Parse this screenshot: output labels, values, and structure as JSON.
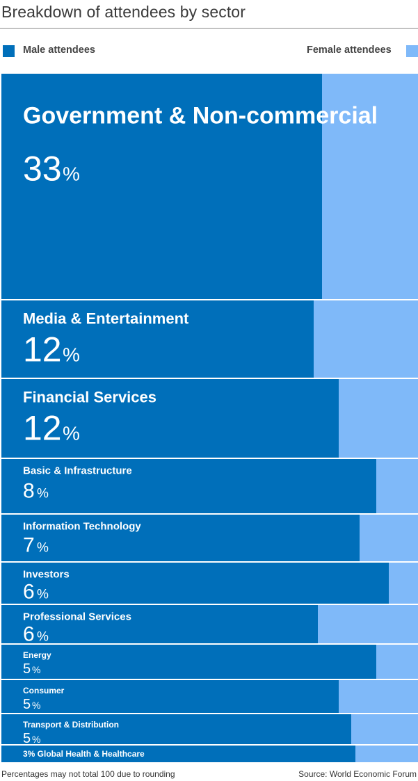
{
  "title": "Breakdown of attendees by sector",
  "legend": {
    "male": "Male attendees",
    "female": "Female attendees"
  },
  "colors": {
    "male": "#006fba",
    "female": "#7fb9f9",
    "separator": "#ffffff"
  },
  "footer": {
    "note": "Percentages may not total 100 due to rounding",
    "source": "Source: World Economic Forum"
  },
  "chart_data": {
    "type": "bar",
    "subtype": "variable-width stacked bar (100%)",
    "title": "Breakdown of attendees by sector",
    "series": [
      {
        "name": "Male attendees",
        "values": [
          77,
          75,
          81,
          90,
          86,
          93,
          76,
          90,
          81,
          84,
          85
        ]
      },
      {
        "name": "Female attendees",
        "values": [
          23,
          25,
          19,
          10,
          14,
          7,
          24,
          10,
          19,
          16,
          15
        ]
      }
    ],
    "categories": [
      "Government & Non-commercial",
      "Media & Entertainment",
      "Financial Services",
      "Basic & Infrastructure",
      "Information Technology",
      "Investors",
      "Professional Services",
      "Energy",
      "Consumer",
      "Transport & Distribution",
      "Global Health & Healthcare"
    ],
    "shares": [
      33,
      12,
      12,
      8,
      7,
      6,
      6,
      5,
      5,
      5,
      3
    ],
    "share_labels": [
      "33",
      "12",
      "12",
      "8",
      "7",
      "6",
      "6",
      "5",
      "5",
      "5",
      "3"
    ],
    "percent_sign": "%",
    "inline_label": "3% Global Health & Healthcare",
    "xlim": [
      0,
      100
    ]
  }
}
